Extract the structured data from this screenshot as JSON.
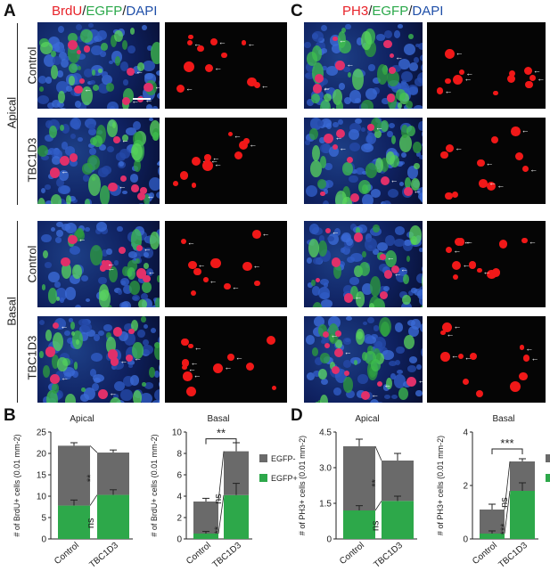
{
  "panel_A": {
    "letter": "A",
    "title_parts": [
      {
        "text": "BrdU",
        "color": "#e8232a"
      },
      {
        "text": "/",
        "color": "#222222"
      },
      {
        "text": "EGFP",
        "color": "#2aa84a"
      },
      {
        "text": "/",
        "color": "#222222"
      },
      {
        "text": "DAPI",
        "color": "#1f4fa8"
      }
    ]
  },
  "panel_C": {
    "letter": "C",
    "title_parts": [
      {
        "text": "PH3",
        "color": "#e8232a"
      },
      {
        "text": "/",
        "color": "#222222"
      },
      {
        "text": "EGFP",
        "color": "#2aa84a"
      },
      {
        "text": "/",
        "color": "#222222"
      },
      {
        "text": "DAPI",
        "color": "#1f4fa8"
      }
    ]
  },
  "region_labels": {
    "apical": "Apical",
    "basal": "Basal"
  },
  "row_labels": [
    "Control",
    "TBC1D3",
    "Control",
    "TBC1D3"
  ],
  "panel_B": {
    "letter": "B"
  },
  "panel_D": {
    "letter": "D"
  },
  "chart_data": [
    {
      "type": "bar",
      "stacked": true,
      "title": "Apical",
      "ylabel": "# of BrdU+ cells (0.01 mm-2)",
      "categories": [
        "Control",
        "TBC1D3"
      ],
      "ylim": [
        0,
        25
      ],
      "yticks": [
        "0",
        "5",
        "10",
        "15",
        "20",
        "25"
      ],
      "series": [
        {
          "name": "EGFP+",
          "color": "#2da84a",
          "values": [
            7.8,
            10.3
          ]
        },
        {
          "name": "EGFP-",
          "color": "#6a6a6a",
          "values": [
            14.0,
            9.9
          ]
        }
      ],
      "error_top": [
        0.7,
        0.6
      ],
      "error_green": [
        1.3,
        1.2
      ],
      "annotations": [
        {
          "text": "**",
          "between": "EGFP-"
        },
        {
          "text": "ns",
          "between": "EGFP+"
        }
      ]
    },
    {
      "type": "bar",
      "stacked": true,
      "title": "Basal",
      "ylabel": "# of BrdU+ cells (0.01 mm-2)",
      "categories": [
        "Control",
        "TBC1D3"
      ],
      "ylim": [
        0,
        10
      ],
      "yticks": [
        "0",
        "2",
        "4",
        "6",
        "8",
        "10"
      ],
      "series": [
        {
          "name": "EGFP+",
          "color": "#2da84a",
          "values": [
            0.5,
            4.1
          ]
        },
        {
          "name": "EGFP-",
          "color": "#6a6a6a",
          "values": [
            3.0,
            4.1
          ]
        }
      ],
      "error_top": [
        0.3,
        0.8
      ],
      "error_green": [
        0.2,
        1.1
      ],
      "annotations": [
        {
          "text": "ns",
          "between": "EGFP-"
        },
        {
          "text": "**",
          "between": "EGFP+"
        },
        {
          "text": "**",
          "between": "total"
        }
      ],
      "legend": [
        "EGFP-",
        "EGFP+"
      ]
    },
    {
      "type": "bar",
      "stacked": true,
      "title": "Apical",
      "ylabel": "# of PH3+ cells (0.01 mm-2)",
      "categories": [
        "Control",
        "TBC1D3"
      ],
      "ylim": [
        0,
        4.5
      ],
      "yticks": [
        "0",
        "1.5",
        "3.0",
        "4.5"
      ],
      "series": [
        {
          "name": "EGFP+",
          "color": "#2da84a",
          "values": [
            1.2,
            1.6
          ]
        },
        {
          "name": "EGFP-",
          "color": "#6a6a6a",
          "values": [
            2.7,
            1.7
          ]
        }
      ],
      "error_top": [
        0.3,
        0.3
      ],
      "error_green": [
        0.2,
        0.2
      ],
      "annotations": [
        {
          "text": "**",
          "between": "EGFP-"
        },
        {
          "text": "ns",
          "between": "EGFP+"
        }
      ]
    },
    {
      "type": "bar",
      "stacked": true,
      "title": "Basal",
      "ylabel": "# of PH3+ cells (0.01 mm-2)",
      "categories": [
        "Control",
        "TBC1D3"
      ],
      "ylim": [
        0,
        4
      ],
      "yticks": [
        "0",
        "2",
        "4"
      ],
      "series": [
        {
          "name": "EGFP+",
          "color": "#2da84a",
          "values": [
            0.2,
            1.8
          ]
        },
        {
          "name": "EGFP-",
          "color": "#6a6a6a",
          "values": [
            0.9,
            1.1
          ]
        }
      ],
      "error_top": [
        0.2,
        0.1
      ],
      "error_green": [
        0.1,
        0.3
      ],
      "annotations": [
        {
          "text": "ns",
          "between": "EGFP-"
        },
        {
          "text": "***",
          "between": "EGFP+"
        },
        {
          "text": "***",
          "between": "total"
        }
      ],
      "legend": [
        "EGFP-",
        "EGFP+"
      ]
    }
  ]
}
